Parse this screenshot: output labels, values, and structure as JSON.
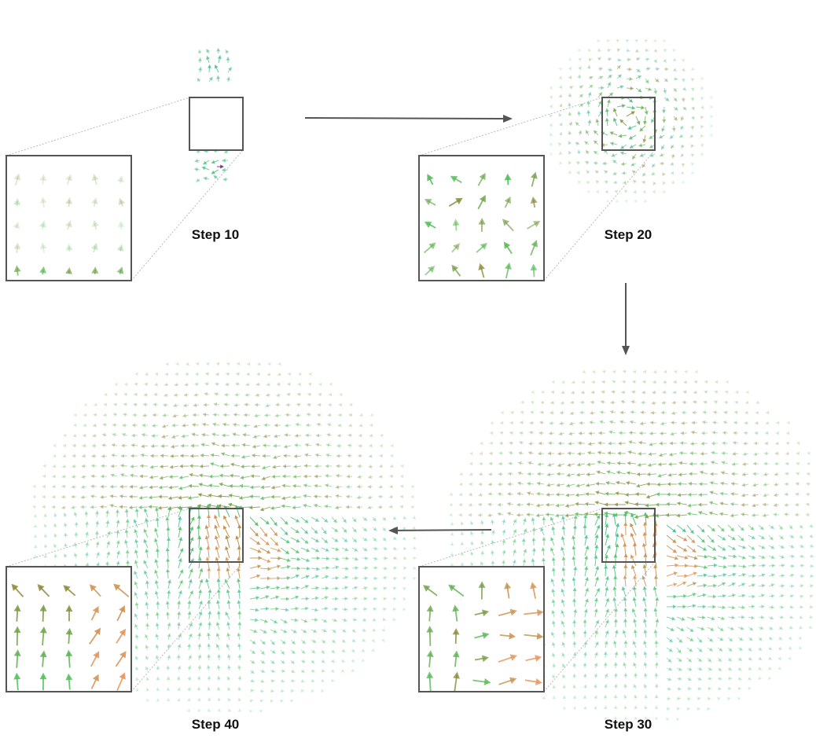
{
  "figure": {
    "panels": [
      {
        "id": "step10",
        "label": "Step 10",
        "spread": 0.12,
        "flow": "sparse-center"
      },
      {
        "id": "step20",
        "label": "Step 20",
        "spread": 0.35,
        "flow": "spreading"
      },
      {
        "id": "step30",
        "label": "Step 30",
        "spread": 0.8,
        "flow": "vortex"
      },
      {
        "id": "step40",
        "label": "Step 40",
        "spread": 0.95,
        "flow": "vortex-strong"
      }
    ],
    "sequence": [
      "Step 10",
      "Step 20",
      "Step 30",
      "Step 40"
    ],
    "colors": {
      "teal": "#3fbf8f",
      "olive": "#8c8a3a",
      "orange": "#e8945a",
      "green": "#4fbf5a",
      "purple": "#7a2a7a",
      "frame": "#555555",
      "arrow": "#555555"
    }
  }
}
